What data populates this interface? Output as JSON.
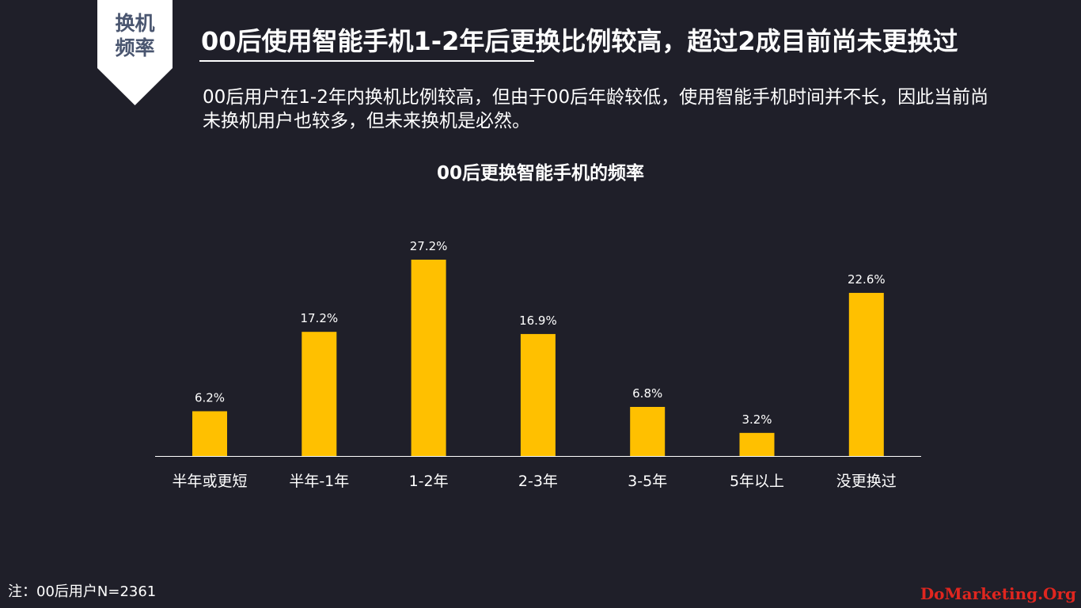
{
  "badge": {
    "text_line1": "换机",
    "text_line2": "频率"
  },
  "header": {
    "title": "00后使用智能手机1-2年后更换比例较高，超过2成目前尚未更换过",
    "subtitle": "00后用户在1-2年内换机比例较高，但由于00后年龄较低，使用智能手机时间并不长，因此当前尚未换机用户也较多，但未来换机是必然。"
  },
  "chart_data": {
    "type": "bar",
    "title": "00后更换智能手机的频率",
    "categories": [
      "半年或更短",
      "半年-1年",
      "1-2年",
      "2-3年",
      "3-5年",
      "5年以上",
      "没更换过"
    ],
    "values": [
      6.2,
      17.2,
      27.2,
      16.9,
      6.8,
      3.2,
      22.6
    ],
    "value_labels": [
      "6.2%",
      "17.2%",
      "27.2%",
      "16.9%",
      "6.8%",
      "3.2%",
      "22.6%"
    ],
    "unit": "%",
    "xlabel": "",
    "ylabel": "",
    "ylim": [
      0,
      27.2
    ],
    "grid": false,
    "bar_color": "#ffc000",
    "axis_color": "#ffffff"
  },
  "footnote": "注：00后用户N=2361",
  "watermark": "DoMarketing.Org"
}
